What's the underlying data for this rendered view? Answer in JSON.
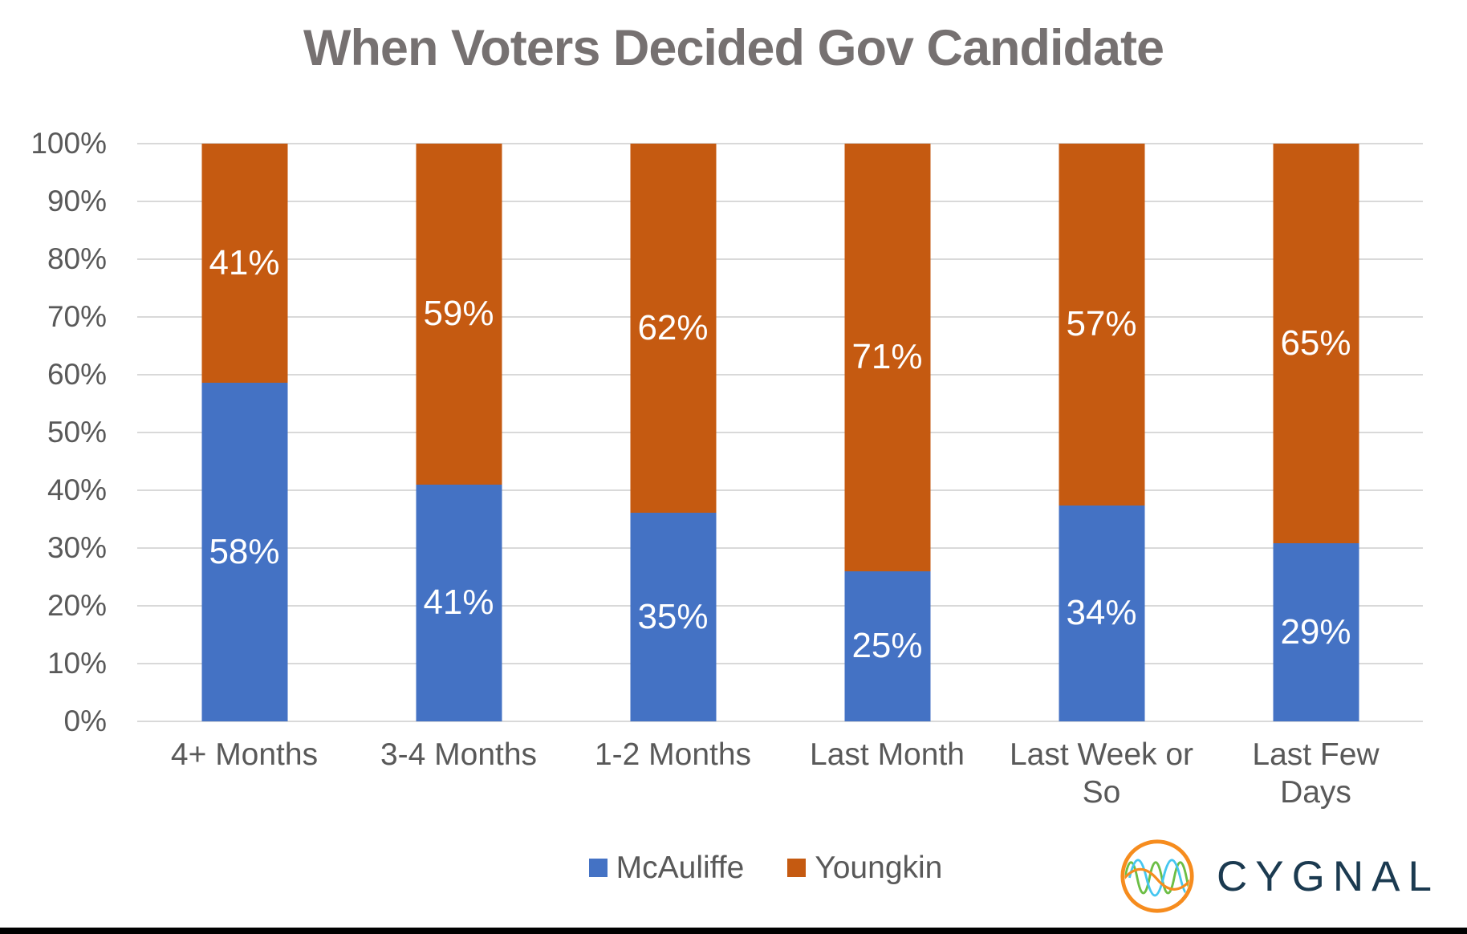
{
  "title": "When Voters Decided Gov Candidate",
  "chart_data": {
    "type": "bar",
    "subtype": "stacked-100-percent-column",
    "title": "When Voters Decided Gov Candidate",
    "categories": [
      "4+ Months",
      "3-4 Months",
      "1-2 Months",
      "Last Month",
      "Last Week or\nSo",
      "Last Few\nDays"
    ],
    "series": [
      {
        "name": "McAuliffe",
        "color": "#4472C4",
        "values": [
          58,
          41,
          35,
          25,
          34,
          29
        ]
      },
      {
        "name": "Youngkin",
        "color": "#C55A11",
        "values": [
          41,
          59,
          62,
          71,
          57,
          65
        ]
      }
    ],
    "value_suffix": "%",
    "xlabel": "",
    "ylabel": "",
    "y_axis": {
      "min": 0,
      "max": 100,
      "step": 10,
      "tick_labels": [
        "0%",
        "10%",
        "20%",
        "30%",
        "40%",
        "50%",
        "60%",
        "70%",
        "80%",
        "90%",
        "100%"
      ]
    },
    "grid": true,
    "legend_position": "bottom"
  },
  "legend": {
    "items": [
      {
        "label": "McAuliffe",
        "color": "#4472C4"
      },
      {
        "label": "Youngkin",
        "color": "#C55A11"
      }
    ]
  },
  "branding": {
    "name": "CYGNAL"
  },
  "colors": {
    "title_text": "#767171",
    "axis_text": "#595959",
    "gridline": "#D9D9D9",
    "data_label_text": "#FFFFFF",
    "logo_text": "#1B3A50",
    "logo_orange": "#F68C1E",
    "logo_green": "#6CBE45",
    "logo_cyan": "#45C6F0"
  }
}
